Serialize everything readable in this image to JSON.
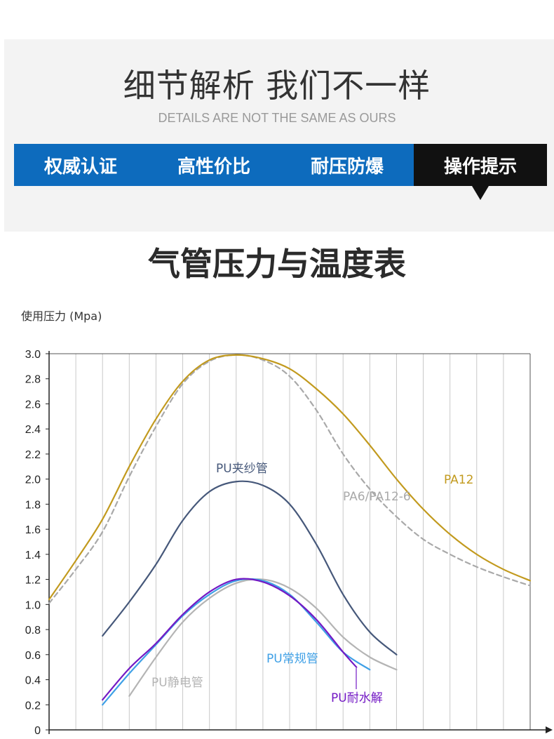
{
  "header": {
    "title": "细节解析 我们不一样",
    "subtitle": "DETAILS ARE NOT THE SAME AS OURS",
    "tabs": [
      {
        "label": "权威认证",
        "active": false
      },
      {
        "label": "高性价比",
        "active": false
      },
      {
        "label": "耐压防爆",
        "active": false
      },
      {
        "label": "操作提示",
        "active": true
      }
    ],
    "colors": {
      "tab": "#0d6bbd",
      "tab_active": "#111111",
      "panel": "#f3f3f3"
    }
  },
  "section": {
    "title": "气管压力与温度表"
  },
  "chart_data": {
    "type": "line",
    "ylabel": "使用压力 (Mpa)",
    "xlabel": "",
    "ylim": [
      0,
      3.0
    ],
    "yticks": [
      "0",
      "0.2",
      "0.4",
      "0.6",
      "0.8",
      "1.0",
      "1.2",
      "1.4",
      "1.6",
      "1.8",
      "2.0",
      "2.2",
      "2.4",
      "2.6",
      "2.8",
      "3.0"
    ],
    "xlim": [
      0,
      36
    ],
    "grid": "vertical",
    "series": [
      {
        "name": "PA12",
        "color": "#c29a1e",
        "dashed": false,
        "x": [
          0,
          2,
          4,
          6,
          8,
          10,
          12,
          14,
          16,
          18,
          20,
          22,
          24,
          26,
          28,
          30,
          32,
          34,
          36
        ],
        "y": [
          1.04,
          1.35,
          1.68,
          2.1,
          2.48,
          2.78,
          2.95,
          2.99,
          2.96,
          2.88,
          2.72,
          2.52,
          2.27,
          2.0,
          1.76,
          1.56,
          1.4,
          1.28,
          1.19
        ]
      },
      {
        "name": "PA6/PA12-6",
        "color": "#a9a9a9",
        "dashed": true,
        "x": [
          0,
          2,
          4,
          6,
          8,
          10,
          12,
          14,
          16,
          18,
          20,
          22,
          24,
          26,
          28,
          30,
          32,
          34,
          36
        ],
        "y": [
          1.01,
          1.28,
          1.58,
          2.02,
          2.42,
          2.76,
          2.94,
          2.99,
          2.95,
          2.82,
          2.55,
          2.2,
          1.92,
          1.7,
          1.52,
          1.4,
          1.3,
          1.22,
          1.15
        ]
      },
      {
        "name": "PU夹纱管",
        "color": "#46587a",
        "dashed": false,
        "x": [
          4,
          6,
          8,
          10,
          12,
          14,
          16,
          18,
          20,
          22,
          24,
          26
        ],
        "y": [
          0.75,
          1.02,
          1.32,
          1.67,
          1.9,
          1.98,
          1.95,
          1.8,
          1.48,
          1.08,
          0.78,
          0.6
        ]
      },
      {
        "name": "PU常规管",
        "color": "#3fa0e6",
        "dashed": false,
        "x": [
          4,
          6,
          8,
          10,
          12,
          14,
          16,
          18,
          20,
          22,
          24
        ],
        "y": [
          0.2,
          0.45,
          0.68,
          0.91,
          1.08,
          1.19,
          1.19,
          1.08,
          0.86,
          0.62,
          0.48
        ]
      },
      {
        "name": "PU静电管",
        "color": "#b4b4b4",
        "dashed": false,
        "x": [
          6,
          8,
          10,
          12,
          14,
          16,
          18,
          20,
          22,
          24,
          26
        ],
        "y": [
          0.27,
          0.58,
          0.86,
          1.05,
          1.17,
          1.2,
          1.13,
          0.97,
          0.74,
          0.58,
          0.48
        ]
      },
      {
        "name": "PU耐水解",
        "color": "#7319c4",
        "dashed": false,
        "x": [
          4,
          6,
          8,
          10,
          12,
          14,
          16,
          18,
          20,
          22,
          23
        ],
        "y": [
          0.24,
          0.49,
          0.69,
          0.92,
          1.1,
          1.2,
          1.18,
          1.07,
          0.88,
          0.62,
          0.5
        ]
      }
    ],
    "labels": [
      {
        "text": "PU夹纱管",
        "series": 2
      },
      {
        "text": "PA6/PA12-6",
        "series": 1
      },
      {
        "text": "PA12",
        "series": 0
      },
      {
        "text": "PU常规管",
        "series": 3
      },
      {
        "text": "PU静电管",
        "series": 4
      },
      {
        "text": "PU耐水解",
        "series": 5
      }
    ]
  }
}
